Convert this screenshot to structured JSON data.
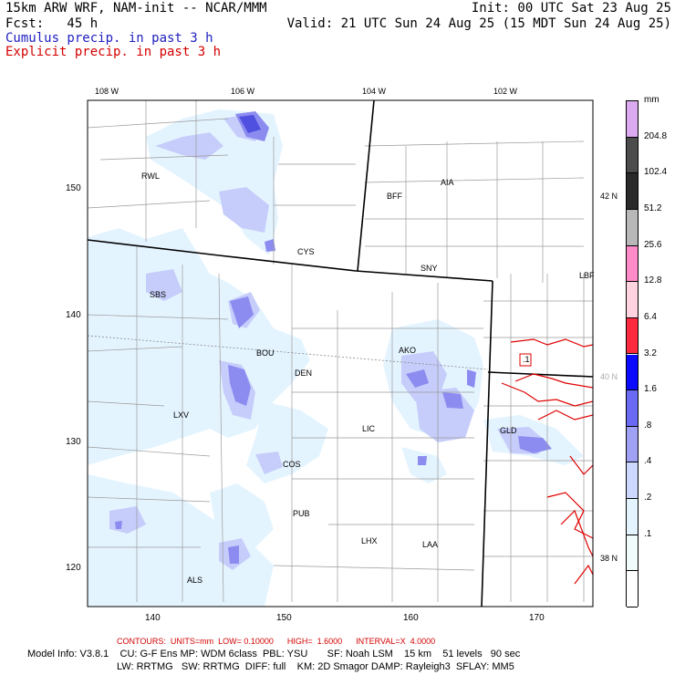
{
  "header": {
    "left_line1": "15km ARW WRF, NAM-init -- NCAR/MMM",
    "left_line2": "Fcst:   45 h",
    "right_line1": "Init: 00 UTC Sat 23 Aug 25",
    "right_line2": "Valid: 21 UTC Sun 24 Aug 25 (15 MDT Sun 24 Aug 25)",
    "legend_cumulus": "Cumulus precip. in past 3 h",
    "legend_explicit": "Explicit precip. in past 3 h",
    "legend_cumulus_color": "#2020c0",
    "legend_explicit_color": "#d40000"
  },
  "map": {
    "lon_labels": [
      "108 W",
      "106 W",
      "104 W",
      "102 W"
    ],
    "lat_labels": [
      "42 N",
      "40 N",
      "38 N"
    ],
    "x_ticks": [
      "140",
      "150",
      "160",
      "170"
    ],
    "y_ticks": [
      "150",
      "140",
      "130",
      "120"
    ],
    "stations": [
      "RWL",
      "CYS",
      "BFF",
      "AIA",
      "SNY",
      "LBF",
      "SBS",
      "BOU",
      "DEN",
      "AKO",
      "LXV",
      "LIC",
      "GLD",
      "COS",
      "PUB",
      "LHX",
      "LAA",
      "ALS"
    ],
    "contour_box_label": ".1"
  },
  "colorbar": {
    "unit": "mm",
    "labels": [
      "204.8",
      "102.4",
      "51.2",
      "25.6",
      "12.8",
      "6.4",
      "3.2",
      "1.6",
      ".8",
      ".4",
      ".2",
      ".1"
    ],
    "colors": [
      "#dcaaf0",
      "#4c4c4c",
      "#2a2a2a",
      "#b8b8b8",
      "#ff8cc8",
      "#ffd4e0",
      "#ff2a40",
      "#0a0aff",
      "#6a6af2",
      "#a0a0f5",
      "#cdd8ff",
      "#e4f4ff",
      "#f0fcfc",
      "#ffffff"
    ]
  },
  "footer": {
    "contours_label": "CONTOURS:  UNITS=mm  LOW= 0.10000      HIGH=  1.6000      INTERVAL=X  4.0000",
    "model_line1": "Model Info: V3.8.1    CU: G-F Ens MP: WDM 6class  PBL: YSU       SF: Noah LSM    15 km    51 levels   90 sec",
    "model_line2": "LW: RRTMG   SW: RRTMG  DIFF: full    KM: 2D Smagor DAMP: Rayleigh3  SFLAY: MM5"
  }
}
